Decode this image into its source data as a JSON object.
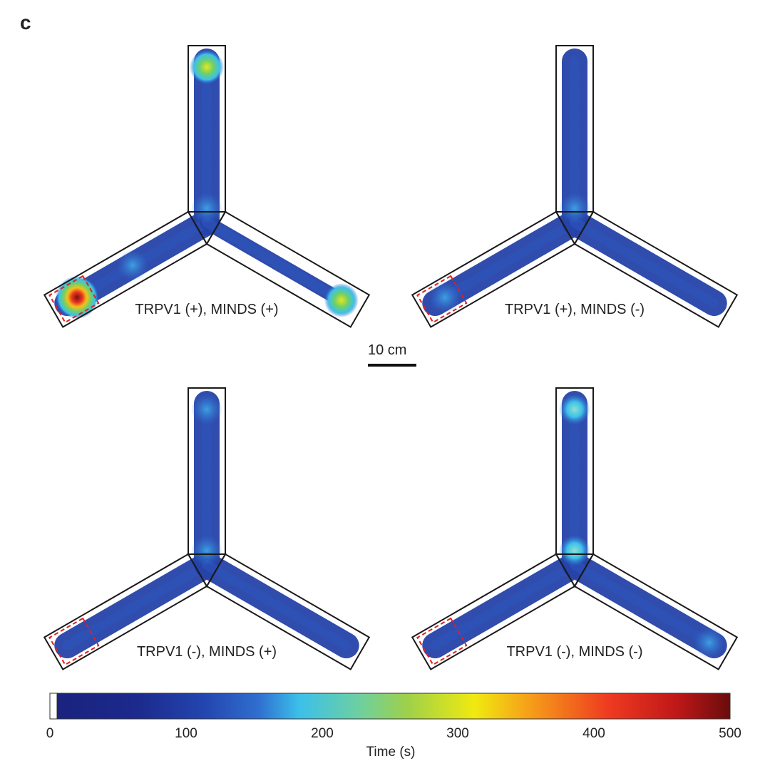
{
  "panel_letter": "c",
  "scale_bar": {
    "label": "10 cm"
  },
  "panels": [
    {
      "label": "TRPV1 (+), MINDS (+)",
      "hotspots": [
        {
          "arm": "left-end",
          "level": 500
        },
        {
          "arm": "top-end",
          "level": 230
        },
        {
          "arm": "right-end",
          "level": 200
        },
        {
          "arm": "center",
          "level": 90
        },
        {
          "arm": "left-mid",
          "level": 100
        }
      ]
    },
    {
      "label": "TRPV1 (+), MINDS (-)",
      "hotspots": [
        {
          "arm": "center",
          "level": 80
        },
        {
          "arm": "left-end",
          "level": 70
        }
      ]
    },
    {
      "label": "TRPV1 (-), MINDS (+)",
      "hotspots": [
        {
          "arm": "center",
          "level": 80
        },
        {
          "arm": "top-end",
          "level": 80
        }
      ]
    },
    {
      "label": "TRPV1 (-), MINDS (-)",
      "hotspots": [
        {
          "arm": "center",
          "level": 150
        },
        {
          "arm": "top-end",
          "level": 130
        },
        {
          "arm": "right-end",
          "level": 110
        }
      ]
    }
  ],
  "colorbar": {
    "ticks": [
      "0",
      "100",
      "200",
      "300",
      "400",
      "500"
    ],
    "label": "Time (s)",
    "range": [
      0,
      500
    ],
    "colors": [
      "#ffffff",
      "#1c2a8c",
      "#2346b0",
      "#2f6fd0",
      "#3cc0ea",
      "#7ccf6a",
      "#e8e61a",
      "#f6a019",
      "#e83520",
      "#7a1010"
    ]
  },
  "colors": {
    "maze_outline": "#1a1a1a",
    "track": "#2543a8",
    "target_zone": "#e02020"
  }
}
